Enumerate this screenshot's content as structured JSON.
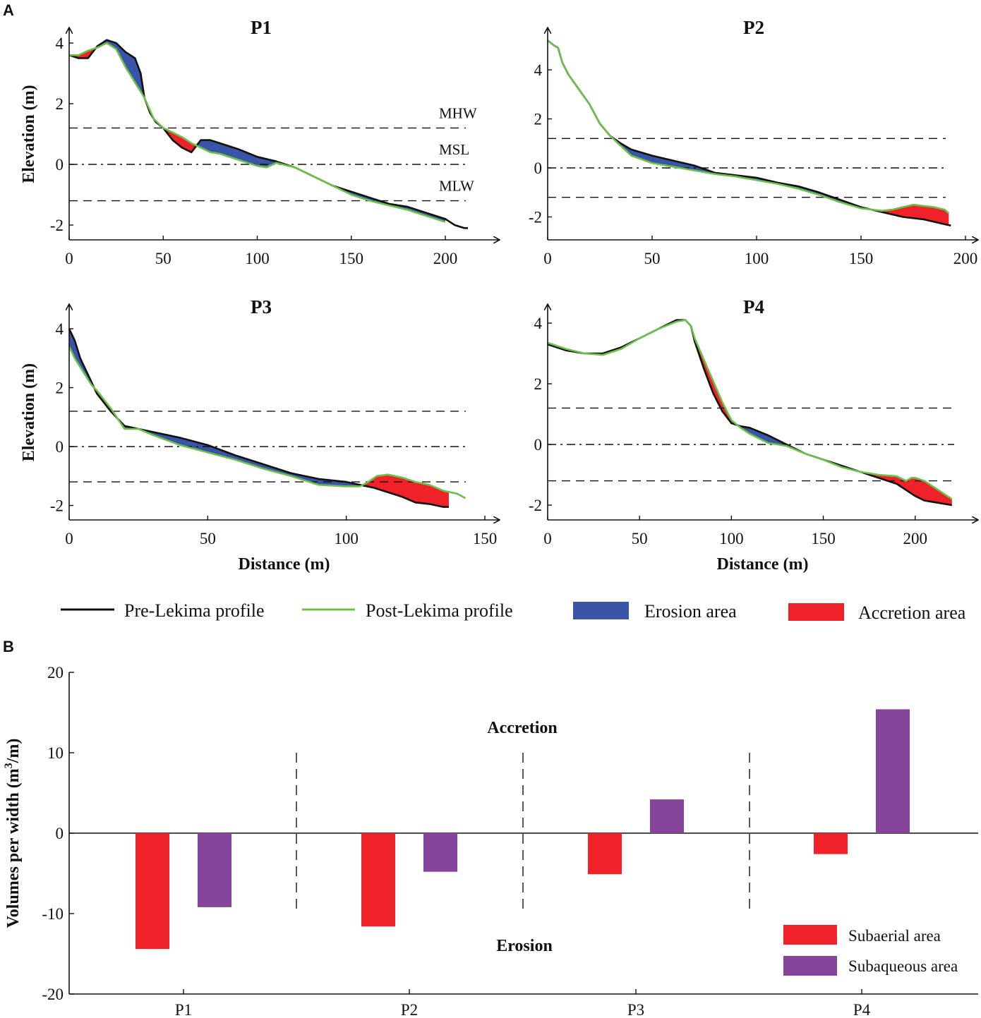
{
  "panels": {
    "a": "A",
    "b": "B"
  },
  "colors": {
    "pre": "#111111",
    "post": "#6cc04a",
    "erosion": "#3a55a8",
    "accretion": "#ee2228",
    "subaerial": "#ee2228",
    "subaqueous": "#86459b"
  },
  "profiles": {
    "ylabel": "Elevation (m)",
    "xlabel": "Distance (m)",
    "water_levels": [
      {
        "name": "MHW",
        "value": 1.2,
        "style": "dashed"
      },
      {
        "name": "MSL",
        "value": 0,
        "style": "dashdot"
      },
      {
        "name": "MLW",
        "value": -1.2,
        "style": "dashed"
      }
    ]
  },
  "legend_a": {
    "pre": "Pre-Lekima profile",
    "post": "Post-Lekima profile",
    "erosion": "Erosion area",
    "accretion": "Accretion area"
  },
  "chart_data": [
    {
      "type": "line",
      "title": "P1",
      "xlabel": "",
      "ylabel": "Elevation (m)",
      "xlim": [
        0,
        220
      ],
      "ylim": [
        -2.5,
        4.5
      ],
      "xticks": [
        0,
        50,
        100,
        150,
        200
      ],
      "yticks": [
        -2,
        0,
        2,
        4
      ],
      "water_level_labels": [
        "MHW",
        "MSL",
        "MLW"
      ],
      "series": [
        {
          "name": "Pre-Lekima profile",
          "x": [
            0,
            5,
            10,
            15,
            20,
            25,
            30,
            35,
            38,
            40,
            43,
            46,
            50,
            55,
            60,
            65,
            70,
            75,
            80,
            90,
            100,
            110,
            120,
            130,
            140,
            150,
            160,
            170,
            180,
            190,
            200,
            205,
            210,
            212
          ],
          "y": [
            3.6,
            3.5,
            3.5,
            3.9,
            4.1,
            4.0,
            3.7,
            3.5,
            3.0,
            2.2,
            1.7,
            1.4,
            1.2,
            0.8,
            0.55,
            0.4,
            0.8,
            0.8,
            0.7,
            0.5,
            0.25,
            0.1,
            -0.1,
            -0.4,
            -0.7,
            -0.9,
            -1.1,
            -1.3,
            -1.4,
            -1.6,
            -1.8,
            -2.0,
            -2.1,
            -2.1
          ]
        },
        {
          "name": "Post-Lekima profile",
          "x": [
            0,
            5,
            10,
            15,
            20,
            25,
            30,
            35,
            40,
            45,
            50,
            55,
            60,
            65,
            70,
            75,
            80,
            90,
            100,
            105,
            110,
            120,
            130,
            140,
            150,
            160,
            170,
            180,
            190,
            200
          ],
          "y": [
            3.6,
            3.6,
            3.75,
            3.85,
            4.0,
            3.8,
            3.2,
            2.7,
            2.2,
            1.5,
            1.2,
            1.05,
            0.9,
            0.7,
            0.55,
            0.4,
            0.35,
            0.15,
            -0.05,
            -0.1,
            0.05,
            -0.1,
            -0.4,
            -0.7,
            -1.0,
            -1.2,
            -1.35,
            -1.5,
            -1.7,
            -1.9
          ]
        }
      ]
    },
    {
      "type": "line",
      "title": "P2",
      "xlabel": "",
      "ylabel": "",
      "xlim": [
        0,
        200
      ],
      "ylim": [
        -3,
        5.6
      ],
      "xticks": [
        0,
        50,
        100,
        150,
        200
      ],
      "yticks": [
        -2,
        0,
        2,
        4
      ],
      "series": [
        {
          "name": "Pre-Lekima profile",
          "x": [
            0,
            3,
            5,
            7,
            10,
            15,
            20,
            25,
            30,
            35,
            40,
            50,
            60,
            70,
            80,
            90,
            100,
            110,
            120,
            130,
            140,
            150,
            160,
            170,
            180,
            185,
            190,
            193
          ],
          "y": [
            5.2,
            5.0,
            4.9,
            4.3,
            3.8,
            3.2,
            2.6,
            1.8,
            1.3,
            1.0,
            0.75,
            0.5,
            0.3,
            0.1,
            -0.2,
            -0.3,
            -0.4,
            -0.6,
            -0.75,
            -1.0,
            -1.3,
            -1.6,
            -1.8,
            -2.0,
            -2.1,
            -2.2,
            -2.3,
            -2.35
          ]
        },
        {
          "name": "Post-Lekima profile",
          "x": [
            0,
            3,
            5,
            7,
            10,
            15,
            20,
            25,
            30,
            35,
            40,
            50,
            60,
            70,
            80,
            90,
            100,
            110,
            120,
            130,
            140,
            150,
            160,
            165,
            170,
            175,
            180,
            185,
            190,
            192
          ],
          "y": [
            5.2,
            5.0,
            4.9,
            4.3,
            3.8,
            3.2,
            2.6,
            1.8,
            1.3,
            0.9,
            0.5,
            0.2,
            0.05,
            -0.1,
            -0.25,
            -0.35,
            -0.5,
            -0.65,
            -0.85,
            -1.1,
            -1.4,
            -1.65,
            -1.75,
            -1.7,
            -1.6,
            -1.5,
            -1.55,
            -1.6,
            -1.7,
            -1.85
          ]
        }
      ]
    },
    {
      "type": "line",
      "title": "P3",
      "xlabel": "Distance (m)",
      "ylabel": "Elevation (m)",
      "xlim": [
        0,
        155
      ],
      "ylim": [
        -2.5,
        4.5
      ],
      "xticks": [
        0,
        50,
        100,
        150
      ],
      "yticks": [
        -2,
        0,
        2,
        4
      ],
      "series": [
        {
          "name": "Pre-Lekima profile",
          "x": [
            0,
            2,
            4,
            6,
            8,
            10,
            15,
            20,
            25,
            30,
            40,
            50,
            60,
            70,
            80,
            90,
            100,
            105,
            110,
            115,
            120,
            125,
            130,
            135,
            137
          ],
          "y": [
            4.0,
            3.6,
            3.0,
            2.6,
            2.2,
            1.8,
            1.2,
            0.7,
            0.6,
            0.5,
            0.3,
            0.05,
            -0.3,
            -0.6,
            -0.9,
            -1.1,
            -1.2,
            -1.3,
            -1.4,
            -1.55,
            -1.7,
            -1.9,
            -1.95,
            -2.05,
            -2.05
          ]
        },
        {
          "name": "Post-Lekima profile",
          "x": [
            0,
            2,
            4,
            6,
            8,
            10,
            15,
            20,
            25,
            30,
            40,
            50,
            60,
            70,
            80,
            90,
            100,
            105,
            108,
            111,
            115,
            120,
            125,
            130,
            135,
            140,
            143
          ],
          "y": [
            3.4,
            3.0,
            2.7,
            2.4,
            2.1,
            1.9,
            1.3,
            0.6,
            0.6,
            0.4,
            0.05,
            -0.2,
            -0.45,
            -0.75,
            -1.0,
            -1.3,
            -1.35,
            -1.35,
            -1.2,
            -1.0,
            -0.95,
            -1.05,
            -1.2,
            -1.3,
            -1.5,
            -1.6,
            -1.75
          ]
        }
      ]
    },
    {
      "type": "line",
      "title": "P4",
      "xlabel": "Distance (m)",
      "ylabel": "",
      "xlim": [
        0,
        225
      ],
      "ylim": [
        -2.5,
        4.5
      ],
      "xticks": [
        0,
        50,
        100,
        150,
        200
      ],
      "yticks": [
        -2,
        0,
        2,
        4
      ],
      "series": [
        {
          "name": "Pre-Lekima profile",
          "x": [
            0,
            10,
            20,
            30,
            40,
            50,
            60,
            70,
            75,
            78,
            80,
            85,
            90,
            95,
            100,
            105,
            110,
            120,
            130,
            140,
            150,
            160,
            170,
            180,
            190,
            195,
            200,
            205,
            210,
            215,
            220
          ],
          "y": [
            3.3,
            3.1,
            3.0,
            3.0,
            3.2,
            3.5,
            3.8,
            4.1,
            4.1,
            3.9,
            3.4,
            2.5,
            1.7,
            1.1,
            0.7,
            0.6,
            0.55,
            0.3,
            0.0,
            -0.3,
            -0.5,
            -0.7,
            -0.9,
            -1.1,
            -1.3,
            -1.5,
            -1.7,
            -1.85,
            -1.9,
            -1.95,
            -2.0
          ]
        },
        {
          "name": "Post-Lekima profile",
          "x": [
            0,
            10,
            20,
            30,
            40,
            50,
            60,
            70,
            75,
            78,
            80,
            85,
            90,
            95,
            100,
            105,
            110,
            120,
            130,
            140,
            150,
            160,
            170,
            180,
            190,
            195,
            198,
            200,
            205,
            210,
            215,
            220
          ],
          "y": [
            3.35,
            3.15,
            3.0,
            2.95,
            3.15,
            3.5,
            3.8,
            4.05,
            4.1,
            3.9,
            3.5,
            2.8,
            2.1,
            1.4,
            0.8,
            0.55,
            0.35,
            0.05,
            -0.05,
            -0.3,
            -0.5,
            -0.75,
            -0.9,
            -1.0,
            -1.05,
            -1.2,
            -1.1,
            -1.1,
            -1.2,
            -1.4,
            -1.6,
            -1.8
          ]
        }
      ]
    },
    {
      "type": "bar",
      "ylabel": "Volumes per width (m3/m)",
      "ylabel_main": "Volumes per width (m",
      "ylabel_sup": "3",
      "ylabel_tail": "/m)",
      "ylim": [
        -20,
        20
      ],
      "yticks": [
        -20,
        -10,
        0,
        10,
        20
      ],
      "categories": [
        "P1",
        "P2",
        "P3",
        "P4"
      ],
      "series": [
        {
          "name": "Subaerial area",
          "values": [
            -14.4,
            -11.6,
            -5.1,
            -2.6
          ]
        },
        {
          "name": "Subaqueous area",
          "values": [
            -9.2,
            -4.8,
            4.2,
            15.4
          ]
        }
      ],
      "annotations": {
        "top": "Accretion",
        "bottom": "Erosion"
      }
    }
  ]
}
